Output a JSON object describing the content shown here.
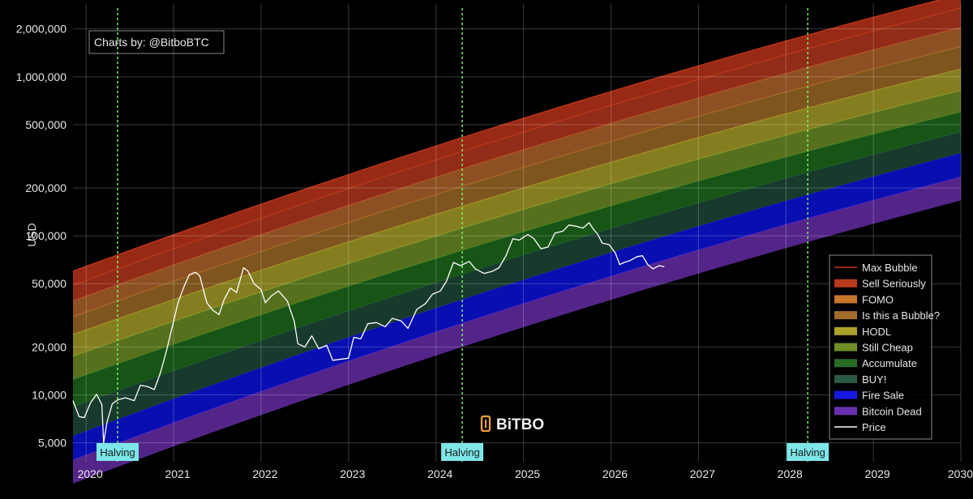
{
  "chart_data": {
    "type": "area",
    "credit": "Charts by: @BitboBTC",
    "logo_text": "BiTBO",
    "ylabel": "USD",
    "y_scale": "log",
    "ylim": [
      3800,
      2900000
    ],
    "xlim": [
      "2019-11-05",
      "2030-01-01"
    ],
    "x_ticks": [
      "2020",
      "2021",
      "2022",
      "2023",
      "2024",
      "2025",
      "2026",
      "2027",
      "2028",
      "2029",
      "2030"
    ],
    "y_ticks": [
      {
        "value": 5000,
        "label": "5,000"
      },
      {
        "value": 10000,
        "label": "10,000"
      },
      {
        "value": 20000,
        "label": "20,000"
      },
      {
        "value": 50000,
        "label": "50,000"
      },
      {
        "value": 100000,
        "label": "100,000"
      },
      {
        "value": 200000,
        "label": "200,000"
      },
      {
        "value": 500000,
        "label": "500,000"
      },
      {
        "value": 1000000,
        "label": "1,000,000"
      },
      {
        "value": 2000000,
        "label": "2,000,000"
      }
    ],
    "grid": true,
    "legend_position": "bottom-right",
    "bands": [
      {
        "name": "Bitcoin Dead",
        "color": "#6a2fb0",
        "start": [
          2019.85,
          3900
        ],
        "end": [
          2030.0,
          235000
        ]
      },
      {
        "name": "Fire Sale",
        "color": "#0a12e0",
        "start": [
          2019.85,
          5500
        ],
        "end": [
          2030.0,
          330000
        ]
      },
      {
        "name": "BUY!",
        "color": "#1e4a38",
        "start": [
          2019.85,
          8400
        ],
        "end": [
          2030.0,
          450000
        ]
      },
      {
        "name": "Accumulate",
        "color": "#1f6b1c",
        "start": [
          2019.85,
          12500
        ],
        "end": [
          2030.0,
          600000
        ]
      },
      {
        "name": "Still Cheap",
        "color": "#6f8f26",
        "start": [
          2019.85,
          17500
        ],
        "end": [
          2030.0,
          820000
        ]
      },
      {
        "name": "HODL",
        "color": "#aaa229",
        "start": [
          2019.85,
          24000
        ],
        "end": [
          2030.0,
          1120000
        ]
      },
      {
        "name": "Is this a Bubble?",
        "color": "#a26d28",
        "start": [
          2019.85,
          31000
        ],
        "end": [
          2030.0,
          1550000
        ]
      },
      {
        "name": "FOMO",
        "color": "#b5662c",
        "start": [
          2019.85,
          39000
        ],
        "end": [
          2030.0,
          2050000
        ]
      },
      {
        "name": "Sell Seriously",
        "color": "#b8391d",
        "start": [
          2019.85,
          49000
        ],
        "end": [
          2030.0,
          2700000
        ]
      },
      {
        "name": "Max Bubble",
        "color": "#c3361b",
        "start": [
          2019.85,
          60000
        ],
        "end": [
          2030.0,
          3300000
        ]
      }
    ],
    "legend": [
      {
        "name": "Max Bubble",
        "color": "#c3361b",
        "kind": "line"
      },
      {
        "name": "Sell Seriously",
        "color": "#b8391d",
        "kind": "box"
      },
      {
        "name": "FOMO",
        "color": "#c7762b",
        "kind": "box"
      },
      {
        "name": "Is this a Bubble?",
        "color": "#a26d28",
        "kind": "box"
      },
      {
        "name": "HODL",
        "color": "#aaa229",
        "kind": "box"
      },
      {
        "name": "Still Cheap",
        "color": "#6f8f26",
        "kind": "box"
      },
      {
        "name": "Accumulate",
        "color": "#2a6b24",
        "kind": "box"
      },
      {
        "name": "BUY!",
        "color": "#2a5a44",
        "kind": "box"
      },
      {
        "name": "Fire Sale",
        "color": "#1418e0",
        "kind": "box"
      },
      {
        "name": "Bitcoin Dead",
        "color": "#6a2fb0",
        "kind": "box"
      },
      {
        "name": "Price",
        "color": "#ffffff",
        "kind": "line"
      }
    ],
    "halvings": [
      {
        "date": "2020-05-11",
        "x": 2020.36,
        "label": "Halving"
      },
      {
        "date": "2024-04-20",
        "x": 2024.3,
        "label": "Halving"
      },
      {
        "date": "2028-04-01",
        "x": 2028.25,
        "label": "Halving"
      }
    ],
    "price_series": {
      "name": "Price",
      "color": "#ffffff",
      "points": [
        [
          2019.85,
          9200
        ],
        [
          2019.92,
          7300
        ],
        [
          2019.98,
          7200
        ],
        [
          2020.05,
          8900
        ],
        [
          2020.12,
          10100
        ],
        [
          2020.18,
          8700
        ],
        [
          2020.2,
          5000
        ],
        [
          2020.24,
          6800
        ],
        [
          2020.3,
          8800
        ],
        [
          2020.36,
          9300
        ],
        [
          2020.45,
          9600
        ],
        [
          2020.55,
          9200
        ],
        [
          2020.62,
          11500
        ],
        [
          2020.7,
          11300
        ],
        [
          2020.78,
          10800
        ],
        [
          2020.85,
          13800
        ],
        [
          2020.92,
          19000
        ],
        [
          2021.0,
          29000
        ],
        [
          2021.05,
          38000
        ],
        [
          2021.12,
          48000
        ],
        [
          2021.18,
          57000
        ],
        [
          2021.25,
          59000
        ],
        [
          2021.3,
          56000
        ],
        [
          2021.38,
          38000
        ],
        [
          2021.45,
          34000
        ],
        [
          2021.52,
          32000
        ],
        [
          2021.58,
          40000
        ],
        [
          2021.65,
          47000
        ],
        [
          2021.72,
          44000
        ],
        [
          2021.8,
          63000
        ],
        [
          2021.85,
          60000
        ],
        [
          2021.92,
          50000
        ],
        [
          2022.0,
          46000
        ],
        [
          2022.05,
          38000
        ],
        [
          2022.12,
          42000
        ],
        [
          2022.2,
          45000
        ],
        [
          2022.3,
          39000
        ],
        [
          2022.38,
          29000
        ],
        [
          2022.42,
          21000
        ],
        [
          2022.5,
          20000
        ],
        [
          2022.58,
          23500
        ],
        [
          2022.66,
          19500
        ],
        [
          2022.75,
          20500
        ],
        [
          2022.82,
          16500
        ],
        [
          2022.92,
          16800
        ],
        [
          2023.0,
          17000
        ],
        [
          2023.06,
          23000
        ],
        [
          2023.14,
          22500
        ],
        [
          2023.22,
          28000
        ],
        [
          2023.32,
          28500
        ],
        [
          2023.42,
          26800
        ],
        [
          2023.5,
          30300
        ],
        [
          2023.6,
          29200
        ],
        [
          2023.68,
          26200
        ],
        [
          2023.78,
          34500
        ],
        [
          2023.88,
          37500
        ],
        [
          2023.96,
          43000
        ],
        [
          2024.05,
          45000
        ],
        [
          2024.12,
          52000
        ],
        [
          2024.2,
          68000
        ],
        [
          2024.28,
          65000
        ],
        [
          2024.38,
          69000
        ],
        [
          2024.45,
          62000
        ],
        [
          2024.55,
          58000
        ],
        [
          2024.65,
          60000
        ],
        [
          2024.72,
          63000
        ],
        [
          2024.8,
          75000
        ],
        [
          2024.88,
          96000
        ],
        [
          2024.95,
          94000
        ],
        [
          2025.05,
          102000
        ],
        [
          2025.12,
          96000
        ],
        [
          2025.2,
          83000
        ],
        [
          2025.28,
          85000
        ],
        [
          2025.36,
          104000
        ],
        [
          2025.45,
          107000
        ],
        [
          2025.52,
          117000
        ],
        [
          2025.6,
          115000
        ],
        [
          2025.68,
          112000
        ],
        [
          2025.75,
          121000
        ],
        [
          2025.8,
          110000
        ],
        [
          2025.85,
          102000
        ],
        [
          2025.9,
          90000
        ],
        [
          2025.98,
          88000
        ],
        [
          2026.05,
          78000
        ],
        [
          2026.1,
          66000
        ],
        [
          2026.15,
          68000
        ],
        [
          2026.22,
          70000
        ],
        [
          2026.3,
          74000
        ],
        [
          2026.36,
          75000
        ],
        [
          2026.42,
          66000
        ],
        [
          2026.48,
          62000
        ],
        [
          2026.55,
          65000
        ],
        [
          2026.61,
          64000
        ]
      ]
    }
  }
}
